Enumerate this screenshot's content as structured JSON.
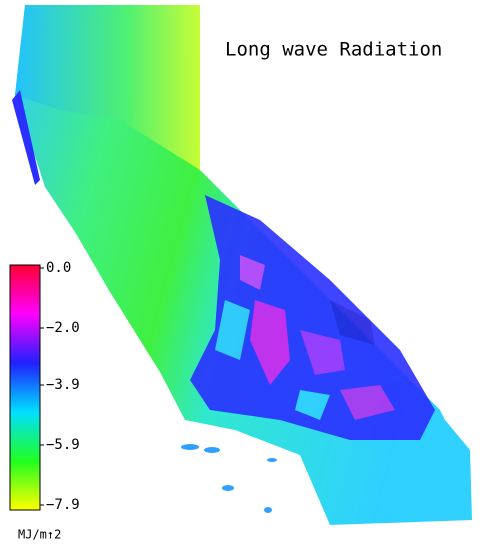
{
  "title": "Long wave Radiation",
  "colorbar": {
    "unit": "MJ/m↑2",
    "range": [
      0,
      -7.9
    ],
    "colormap": [
      "#ff0033",
      "#ff00ff",
      "#2020ff",
      "#00e0ff",
      "#20ff20",
      "#ffff00"
    ],
    "ticks": [
      {
        "value": 0,
        "label": "0.0"
      },
      {
        "value": -2.0,
        "label": "−2.0"
      },
      {
        "value": -3.9,
        "label": "−3.9"
      },
      {
        "value": -5.9,
        "label": "−5.9"
      },
      {
        "value": -7.9,
        "label": "−7.9"
      }
    ]
  }
}
